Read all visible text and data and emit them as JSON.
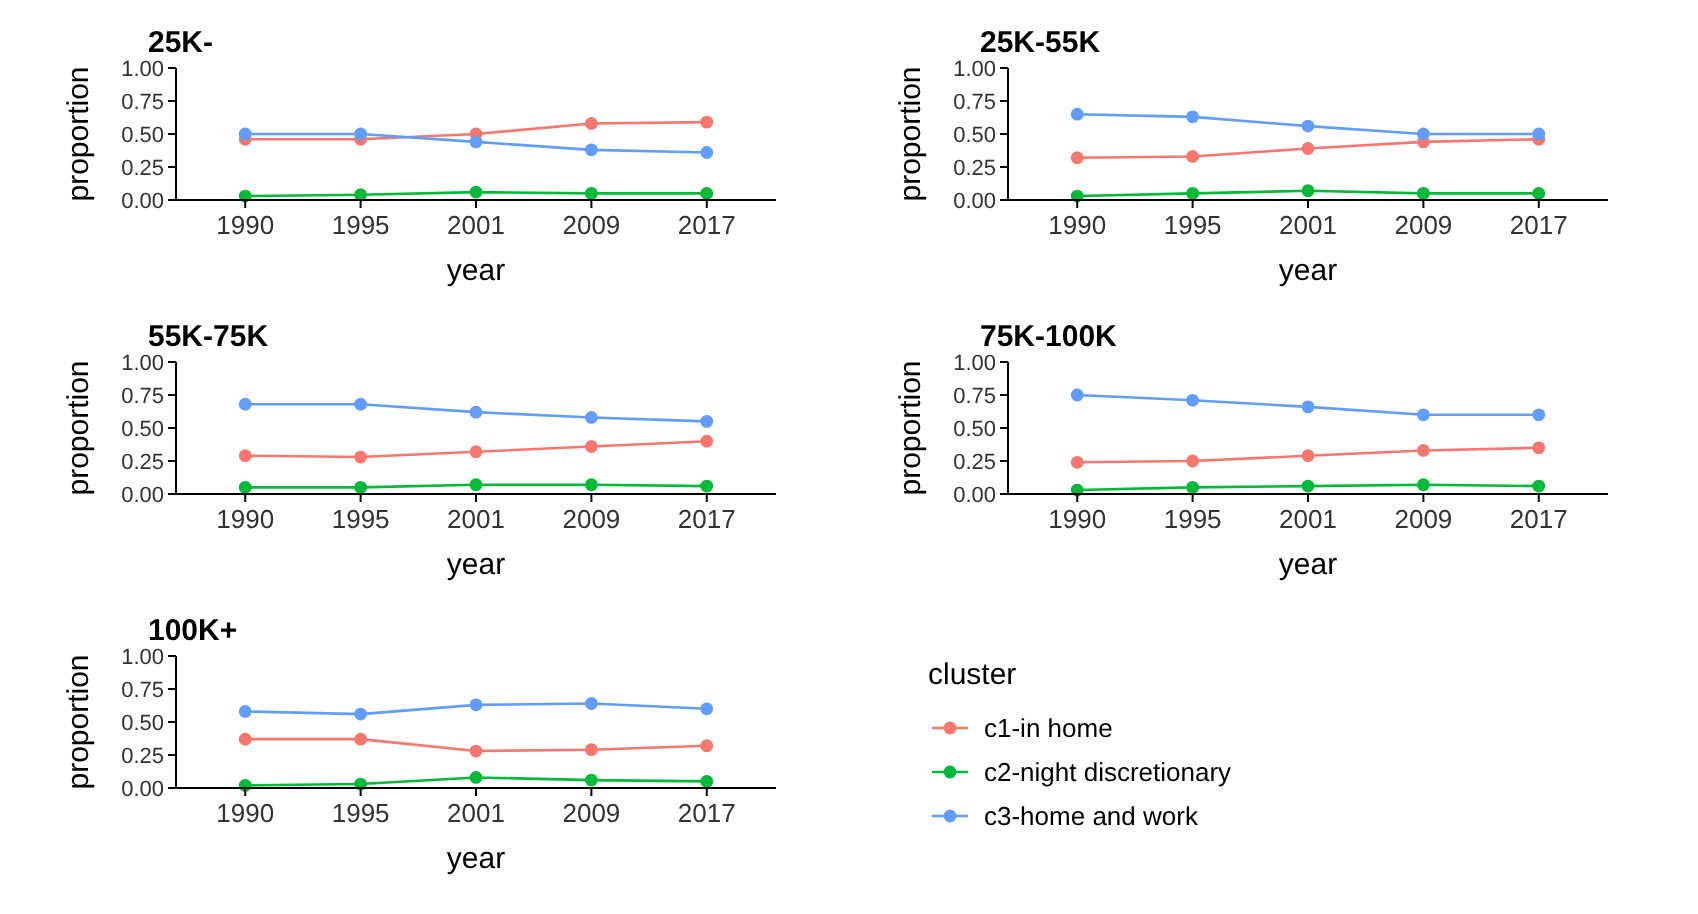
{
  "chart_data": [
    {
      "type": "line",
      "title": "25K-",
      "xlabel": "year",
      "ylabel": "proportion",
      "categories": [
        "1990",
        "1995",
        "2001",
        "2009",
        "2017"
      ],
      "ylim": [
        0,
        1
      ],
      "yticks": [
        {
          "value": 0,
          "label": "0.00"
        },
        {
          "value": 0.25,
          "label": "0.25"
        },
        {
          "value": 0.5,
          "label": "0.50"
        },
        {
          "value": 0.75,
          "label": "0.75"
        },
        {
          "value": 1,
          "label": "1.00"
        }
      ],
      "marker": "circle",
      "series": [
        {
          "color": "#f8766d",
          "values": [
            0.46,
            0.46,
            0.5,
            0.58,
            0.59
          ]
        },
        {
          "color": "#00ba38",
          "values": [
            0.03,
            0.04,
            0.06,
            0.05,
            0.05
          ]
        },
        {
          "color": "#619cff",
          "values": [
            0.5,
            0.5,
            0.44,
            0.38,
            0.36
          ]
        }
      ]
    },
    {
      "type": "line",
      "title": "25K-55K",
      "xlabel": "year",
      "ylabel": "proportion",
      "categories": [
        "1990",
        "1995",
        "2001",
        "2009",
        "2017"
      ],
      "ylim": [
        0,
        1
      ],
      "yticks": [
        {
          "value": 0,
          "label": "0.00"
        },
        {
          "value": 0.25,
          "label": "0.25"
        },
        {
          "value": 0.5,
          "label": "0.50"
        },
        {
          "value": 0.75,
          "label": "0.75"
        },
        {
          "value": 1,
          "label": "1.00"
        }
      ],
      "marker": "circle",
      "series": [
        {
          "color": "#f8766d",
          "values": [
            0.32,
            0.33,
            0.39,
            0.44,
            0.46
          ]
        },
        {
          "color": "#00ba38",
          "values": [
            0.03,
            0.05,
            0.07,
            0.05,
            0.05
          ]
        },
        {
          "color": "#619cff",
          "values": [
            0.65,
            0.63,
            0.56,
            0.5,
            0.5
          ]
        }
      ]
    },
    {
      "type": "line",
      "title": "55K-75K",
      "xlabel": "year",
      "ylabel": "proportion",
      "categories": [
        "1990",
        "1995",
        "2001",
        "2009",
        "2017"
      ],
      "ylim": [
        0,
        1
      ],
      "yticks": [
        {
          "value": 0,
          "label": "0.00"
        },
        {
          "value": 0.25,
          "label": "0.25"
        },
        {
          "value": 0.5,
          "label": "0.50"
        },
        {
          "value": 0.75,
          "label": "0.75"
        },
        {
          "value": 1,
          "label": "1.00"
        }
      ],
      "marker": "circle",
      "series": [
        {
          "color": "#f8766d",
          "values": [
            0.29,
            0.28,
            0.32,
            0.36,
            0.4
          ]
        },
        {
          "color": "#00ba38",
          "values": [
            0.05,
            0.05,
            0.07,
            0.07,
            0.06
          ]
        },
        {
          "color": "#619cff",
          "values": [
            0.68,
            0.68,
            0.62,
            0.58,
            0.55
          ]
        }
      ]
    },
    {
      "type": "line",
      "title": "75K-100K",
      "xlabel": "year",
      "ylabel": "proportion",
      "categories": [
        "1990",
        "1995",
        "2001",
        "2009",
        "2017"
      ],
      "ylim": [
        0,
        1
      ],
      "yticks": [
        {
          "value": 0,
          "label": "0.00"
        },
        {
          "value": 0.25,
          "label": "0.25"
        },
        {
          "value": 0.5,
          "label": "0.50"
        },
        {
          "value": 0.75,
          "label": "0.75"
        },
        {
          "value": 1,
          "label": "1.00"
        }
      ],
      "marker": "circle",
      "series": [
        {
          "color": "#f8766d",
          "values": [
            0.24,
            0.25,
            0.29,
            0.33,
            0.35
          ]
        },
        {
          "color": "#00ba38",
          "values": [
            0.03,
            0.05,
            0.06,
            0.07,
            0.06
          ]
        },
        {
          "color": "#619cff",
          "values": [
            0.75,
            0.71,
            0.66,
            0.6,
            0.6
          ]
        }
      ]
    },
    {
      "type": "line",
      "title": "100K+",
      "xlabel": "year",
      "ylabel": "proportion",
      "categories": [
        "1990",
        "1995",
        "2001",
        "2009",
        "2017"
      ],
      "ylim": [
        0,
        1
      ],
      "yticks": [
        {
          "value": 0,
          "label": "0.00"
        },
        {
          "value": 0.25,
          "label": "0.25"
        },
        {
          "value": 0.5,
          "label": "0.50"
        },
        {
          "value": 0.75,
          "label": "0.75"
        },
        {
          "value": 1,
          "label": "1.00"
        }
      ],
      "marker": "circle",
      "legend": "right",
      "legend_title": "cluster",
      "series": [
        {
          "name": "c1-in home",
          "color": "#f8766d",
          "values": [
            0.37,
            0.37,
            0.28,
            0.29,
            0.32
          ]
        },
        {
          "name": "c2-night discretionary",
          "color": "#00ba38",
          "values": [
            0.02,
            0.03,
            0.08,
            0.06,
            0.05
          ]
        },
        {
          "name": "c3-home and work",
          "color": "#619cff",
          "values": [
            0.58,
            0.56,
            0.63,
            0.64,
            0.6
          ]
        }
      ]
    }
  ]
}
